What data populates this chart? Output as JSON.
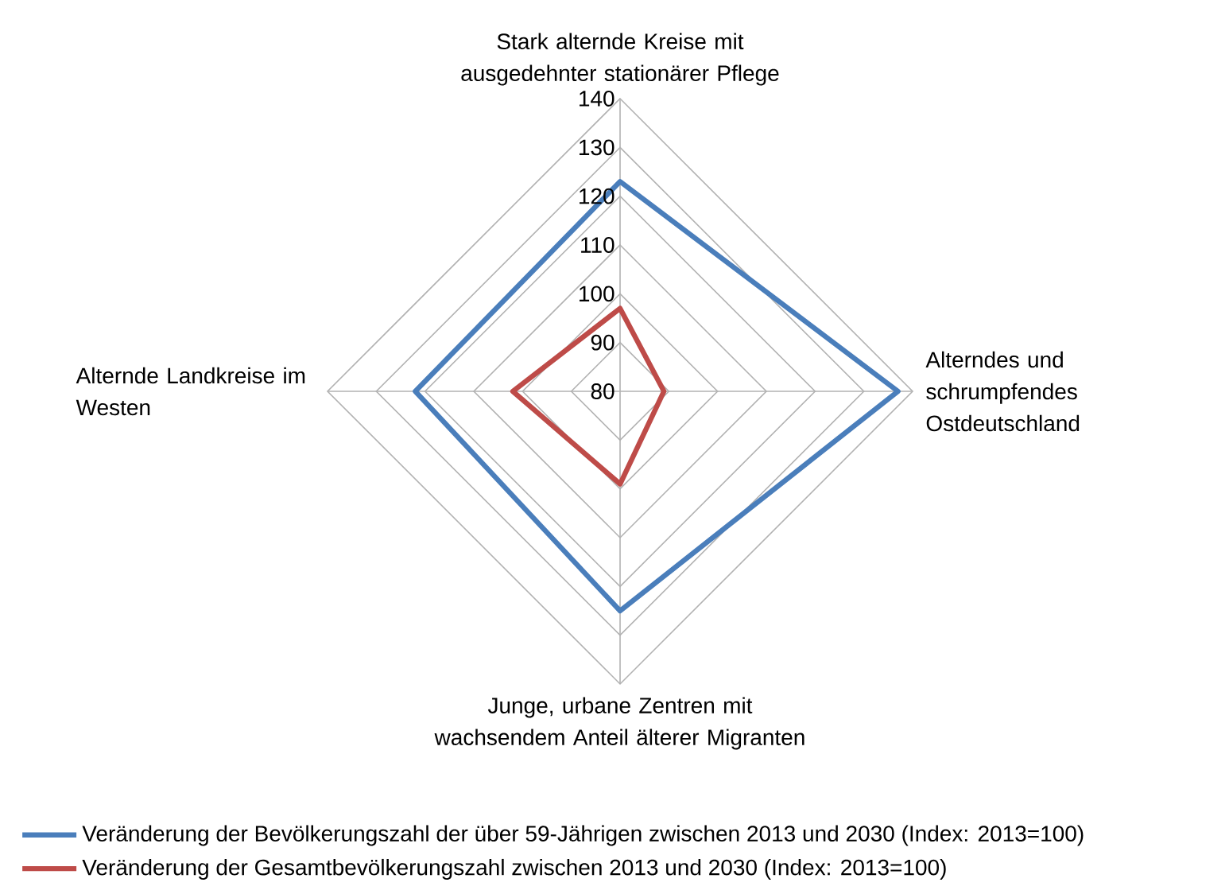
{
  "chart_data": {
    "type": "radar",
    "categories": [
      "Stark alternde Kreise mit ausgedehnter stationärer Pflege",
      "Alterndes und schrumpfendes Ostdeutschland",
      "Junge, urbane Zentren mit wachsendem Anteil älterer Migranten",
      "Alternde Landkreise im Westen"
    ],
    "series": [
      {
        "name": "Veränderung der Bevölkerungszahl der über 59-Jährigen zwischen 2013 und 2030 (Index: 2013=100)",
        "color": "#4a7ebb",
        "values": [
          123,
          137,
          125,
          122
        ]
      },
      {
        "name": "Veränderung der Gesamtbevölkerungszahl zwischen 2013 und 2030 (Index: 2013=100)",
        "color": "#be4b48",
        "values": [
          97,
          89,
          99,
          102
        ]
      }
    ],
    "ylim": [
      80,
      140
    ],
    "yticks": [
      80,
      90,
      100,
      110,
      120,
      130,
      140
    ],
    "grid": true,
    "legend": "bottom",
    "marker": "none",
    "line_style": "solid"
  }
}
